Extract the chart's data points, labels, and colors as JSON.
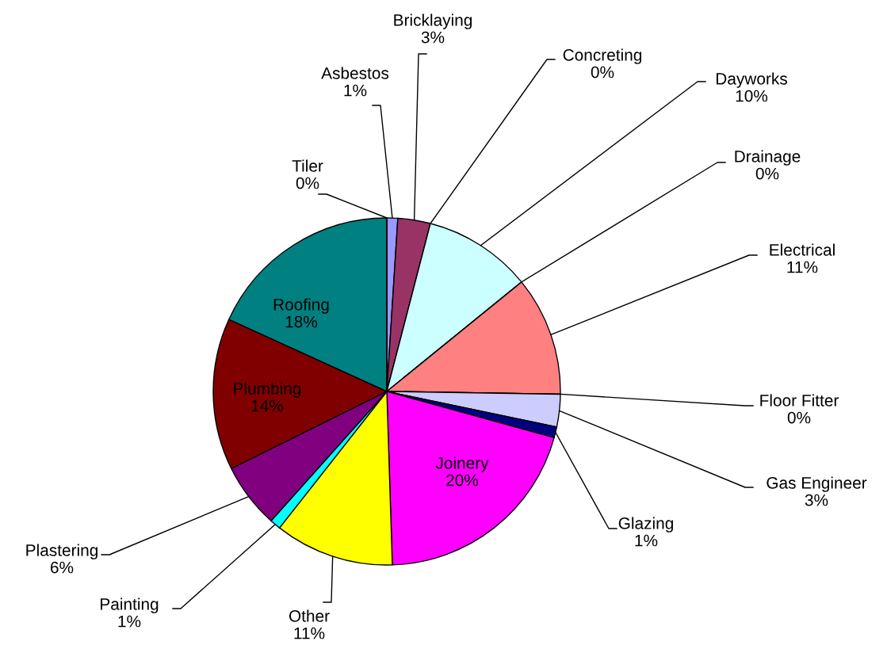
{
  "chart_data": {
    "type": "pie",
    "categories": [
      "Asbestos",
      "Bricklaying",
      "Concreting",
      "Dayworks",
      "Drainage",
      "Electrical",
      "Floor Fitter",
      "Gas Engineer",
      "Glazing",
      "Joinery",
      "Other",
      "Painting",
      "Plastering",
      "Plumbing",
      "Roofing",
      "Tiler"
    ],
    "values": [
      1,
      3,
      0,
      10,
      0,
      11,
      0,
      3,
      1,
      20,
      11,
      1,
      6,
      14,
      18,
      0
    ],
    "value_labels": [
      "1%",
      "3%",
      "0%",
      "10%",
      "0%",
      "11%",
      "0%",
      "3%",
      "1%",
      "20%",
      "11%",
      "1%",
      "6%",
      "14%",
      "18%",
      "0%"
    ],
    "colors": [
      "#9999ff",
      "#993366",
      "#ffffcc",
      "#ccffff",
      "#660066",
      "#ff8080",
      "#0066cc",
      "#ccccff",
      "#000080",
      "#ff00ff",
      "#ffff00",
      "#00ffff",
      "#800080",
      "#800000",
      "#008080",
      "#0000ff"
    ],
    "legend": false
  }
}
